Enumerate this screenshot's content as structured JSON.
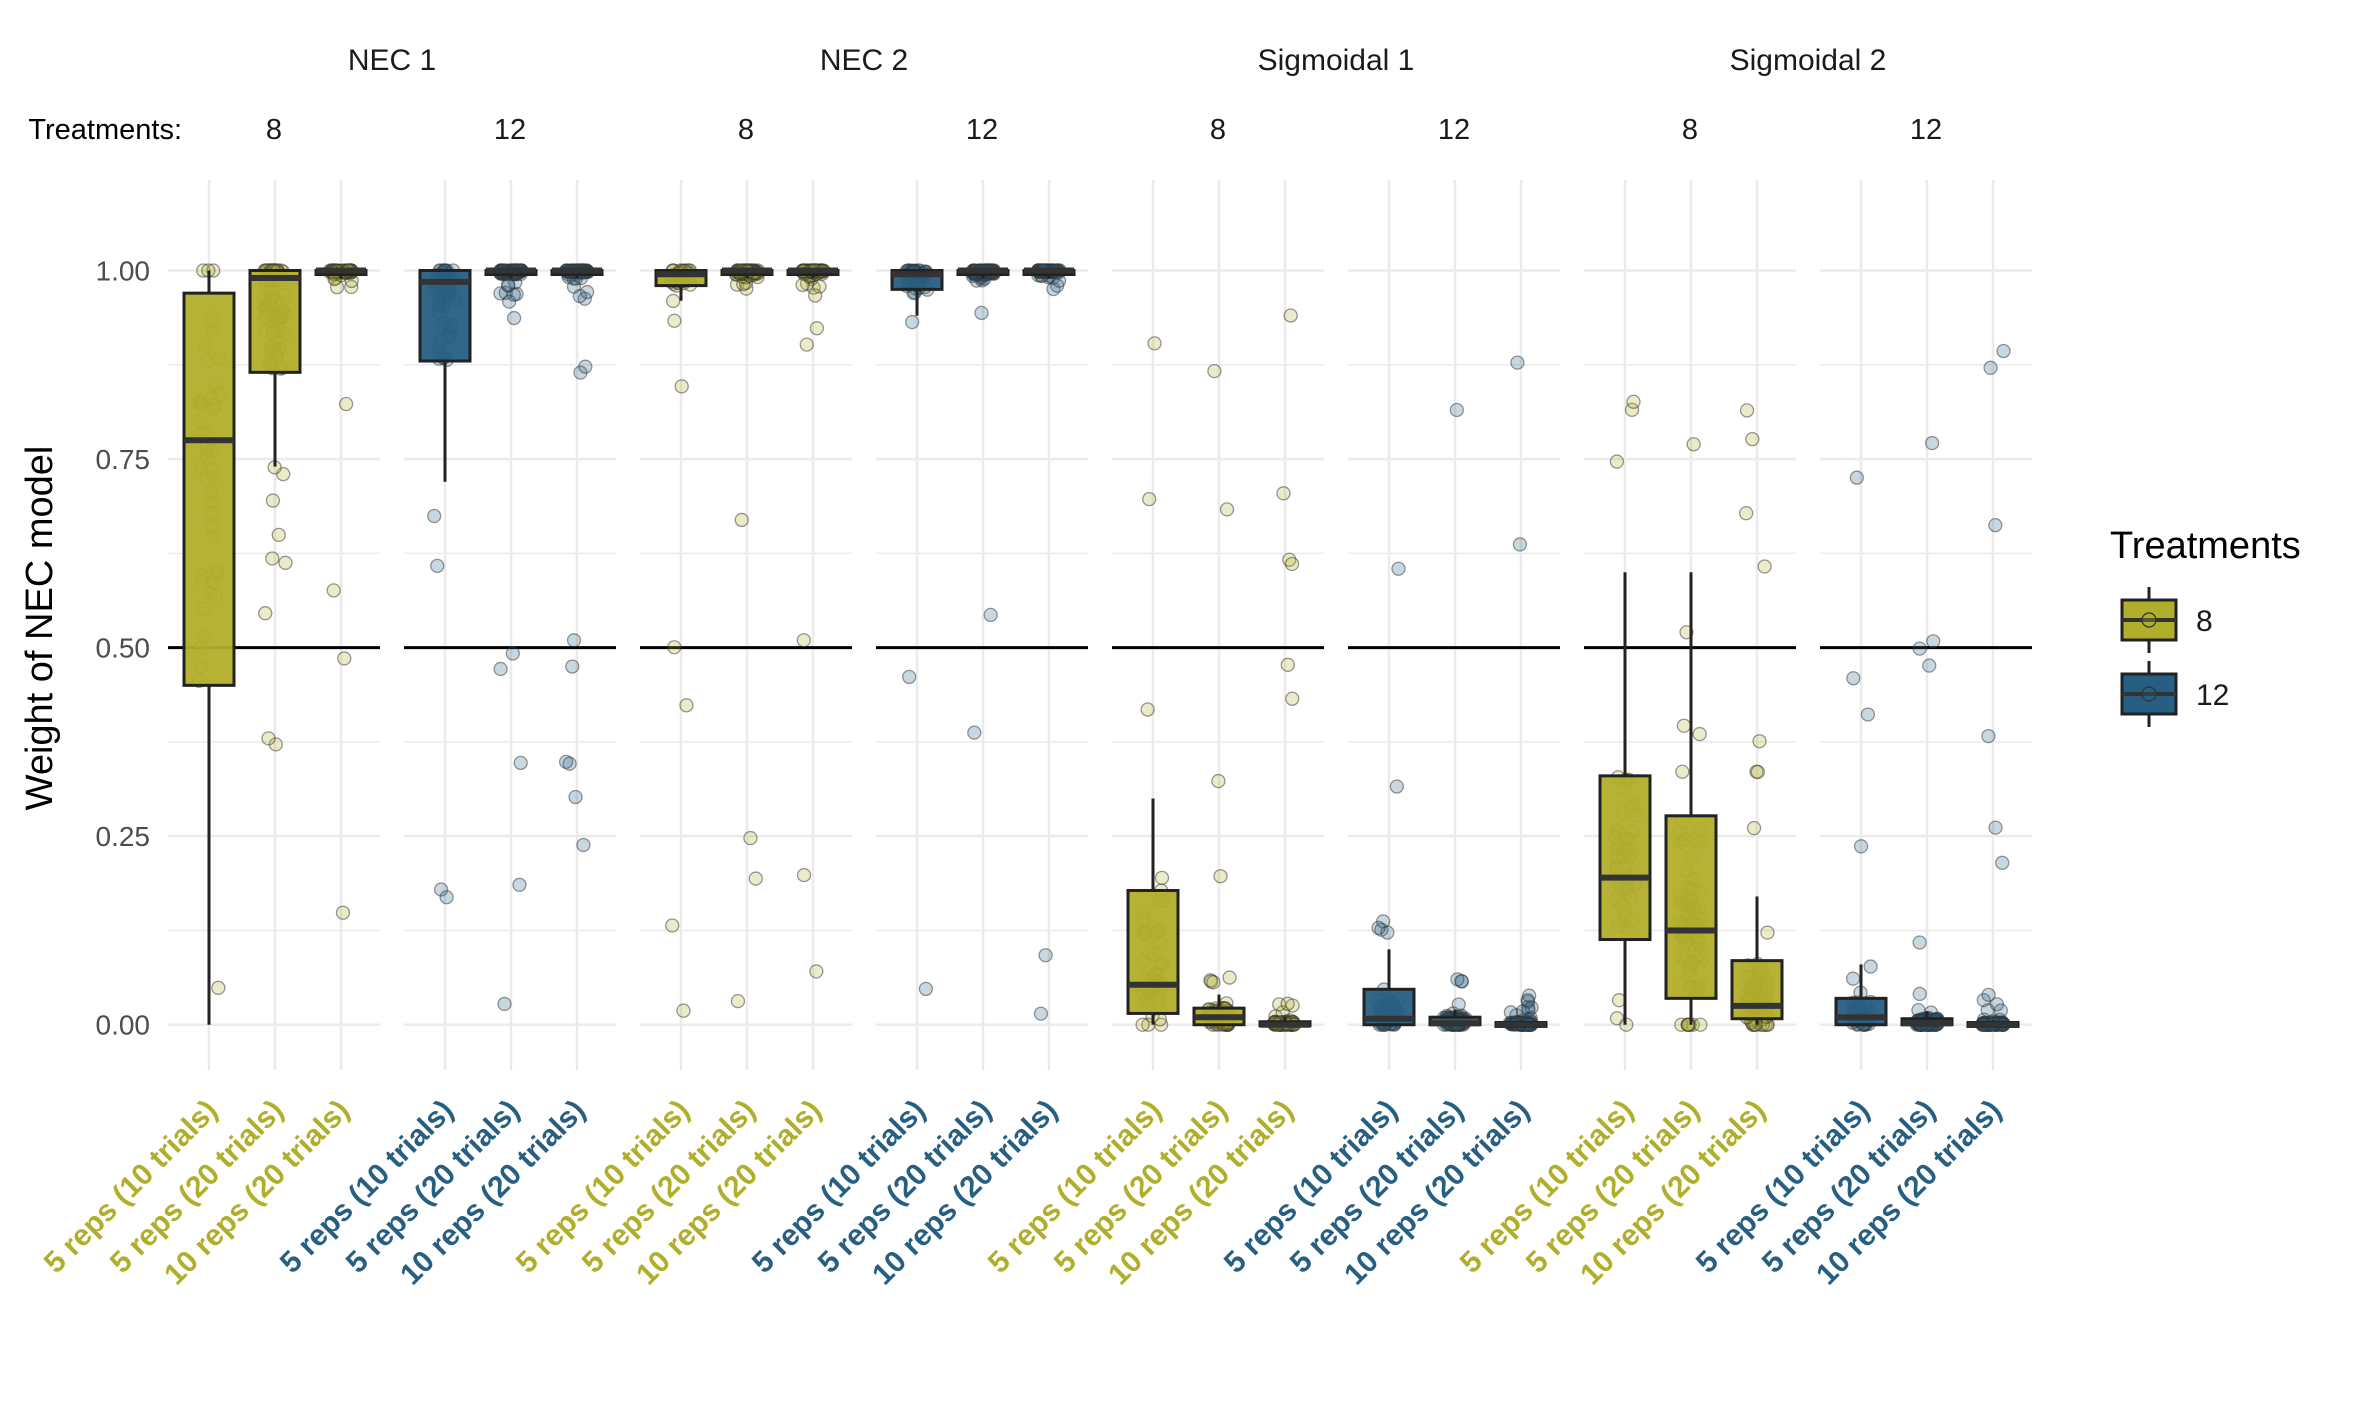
{
  "chart_data": {
    "type": "box",
    "ylabel": "Weight of NEC model",
    "ylim": [
      -0.06,
      1.12
    ],
    "yticks": [
      0,
      0.25,
      0.5,
      0.75,
      1.0
    ],
    "ytick_labels": [
      "0.00",
      "0.25",
      "0.50",
      "0.75",
      "1.00"
    ],
    "reference_line": 0.5,
    "treatments_row_label": "Treatments:",
    "colors": {
      "8": "#b1ae2b",
      "12": "#275f83"
    },
    "legend": {
      "title": "Treatments",
      "placement": "right",
      "items": [
        "8",
        "12"
      ]
    },
    "grid": true,
    "designs": [
      "5 reps (10 trials)",
      "5 reps (20 trials)",
      "10 reps (20 trials)"
    ],
    "groups": [
      {
        "name": "NEC 1",
        "panels": [
          {
            "treatments": "8",
            "boxes": [
              {
                "q1": 0.45,
                "median": 0.775,
                "q3": 0.97,
                "lo": 0.0,
                "hi": 1.0
              },
              {
                "q1": 0.865,
                "median": 0.99,
                "q3": 1.0,
                "lo": 0.74,
                "hi": 1.0
              },
              {
                "q1": 0.997,
                "median": 1.0,
                "q3": 1.0,
                "lo": 0.99,
                "hi": 1.0
              }
            ]
          },
          {
            "treatments": "12",
            "boxes": [
              {
                "q1": 0.88,
                "median": 0.985,
                "q3": 1.0,
                "lo": 0.72,
                "hi": 1.0
              },
              {
                "q1": 0.995,
                "median": 1.0,
                "q3": 1.0,
                "lo": 0.99,
                "hi": 1.0
              },
              {
                "q1": 0.998,
                "median": 1.0,
                "q3": 1.0,
                "lo": 0.99,
                "hi": 1.0
              }
            ]
          }
        ]
      },
      {
        "name": "NEC 2",
        "panels": [
          {
            "treatments": "8",
            "boxes": [
              {
                "q1": 0.98,
                "median": 0.995,
                "q3": 1.0,
                "lo": 0.96,
                "hi": 1.0
              },
              {
                "q1": 0.995,
                "median": 1.0,
                "q3": 1.0,
                "lo": 0.99,
                "hi": 1.0
              },
              {
                "q1": 0.998,
                "median": 1.0,
                "q3": 1.0,
                "lo": 0.99,
                "hi": 1.0
              }
            ]
          },
          {
            "treatments": "12",
            "boxes": [
              {
                "q1": 0.975,
                "median": 0.995,
                "q3": 1.0,
                "lo": 0.94,
                "hi": 1.0
              },
              {
                "q1": 0.995,
                "median": 1.0,
                "q3": 1.0,
                "lo": 0.99,
                "hi": 1.0
              },
              {
                "q1": 0.998,
                "median": 1.0,
                "q3": 1.0,
                "lo": 0.99,
                "hi": 1.0
              }
            ]
          }
        ]
      },
      {
        "name": "Sigmoidal 1",
        "panels": [
          {
            "treatments": "8",
            "boxes": [
              {
                "q1": 0.015,
                "median": 0.053,
                "q3": 0.178,
                "lo": 0.0,
                "hi": 0.3
              },
              {
                "q1": 0.0,
                "median": 0.01,
                "q3": 0.022,
                "lo": 0.0,
                "hi": 0.04
              },
              {
                "q1": 0.0,
                "median": 0.0,
                "q3": 0.004,
                "lo": 0.0,
                "hi": 0.01
              }
            ]
          },
          {
            "treatments": "12",
            "boxes": [
              {
                "q1": 0.0,
                "median": 0.008,
                "q3": 0.047,
                "lo": 0.0,
                "hi": 0.1
              },
              {
                "q1": 0.0,
                "median": 0.002,
                "q3": 0.01,
                "lo": 0.0,
                "hi": 0.02
              },
              {
                "q1": 0.0,
                "median": 0.0,
                "q3": 0.003,
                "lo": 0.0,
                "hi": 0.006
              }
            ]
          }
        ]
      },
      {
        "name": "Sigmoidal 2",
        "panels": [
          {
            "treatments": "8",
            "boxes": [
              {
                "q1": 0.113,
                "median": 0.195,
                "q3": 0.33,
                "lo": 0.0,
                "hi": 0.6
              },
              {
                "q1": 0.035,
                "median": 0.125,
                "q3": 0.277,
                "lo": 0.0,
                "hi": 0.6
              },
              {
                "q1": 0.008,
                "median": 0.025,
                "q3": 0.085,
                "lo": 0.0,
                "hi": 0.17
              }
            ]
          },
          {
            "treatments": "12",
            "boxes": [
              {
                "q1": 0.0,
                "median": 0.01,
                "q3": 0.035,
                "lo": 0.0,
                "hi": 0.08
              },
              {
                "q1": 0.0,
                "median": 0.002,
                "q3": 0.008,
                "lo": 0.0,
                "hi": 0.018
              },
              {
                "q1": 0.0,
                "median": 0.0,
                "q3": 0.003,
                "lo": 0.0,
                "hi": 0.006
              }
            ]
          }
        ]
      }
    ]
  }
}
